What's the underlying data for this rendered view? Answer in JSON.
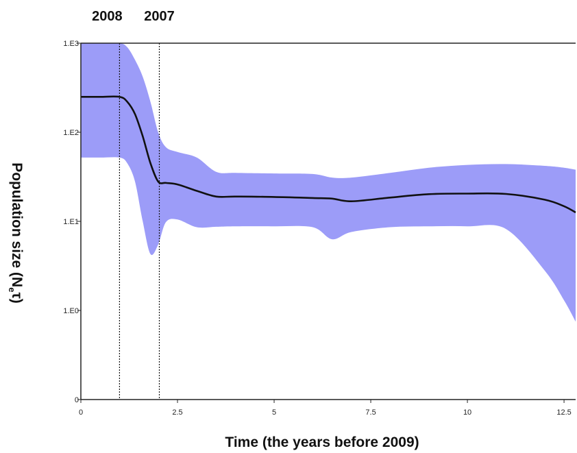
{
  "chart_data": {
    "type": "area",
    "title": "",
    "xlabel": "Time (the years before 2009)",
    "ylabel": "Population size (Neτ)",
    "ylabel_main": "Population size (N",
    "ylabel_sub": "e",
    "ylabel_tail": "τ)",
    "xlim": [
      0,
      12.8
    ],
    "x_ticks": [
      0,
      2.5,
      5,
      7.5,
      10,
      12.5
    ],
    "x_tick_labels": [
      "0",
      "2.5",
      "5",
      "7.5",
      "10",
      "12.5"
    ],
    "y_scale": "log",
    "y_tick_labels": [
      "0",
      "1.E0",
      "1.E1",
      "1.E2",
      "1.E3"
    ],
    "y_tick_exponents": [
      -1,
      0,
      1,
      2,
      3
    ],
    "grid": false,
    "legend": "none",
    "colors": {
      "band": "#9c9cf8",
      "median": "#111111",
      "marker": "#111111"
    },
    "markers": [
      {
        "x": 1.0,
        "label": "2008"
      },
      {
        "x": 2.03,
        "label": "2007"
      }
    ],
    "series": [
      {
        "type": "line",
        "x": [
          0,
          0.5,
          1.0,
          1.2,
          1.4,
          1.6,
          1.8,
          2.0,
          2.2,
          2.5,
          3.0,
          3.5,
          4.0,
          5.0,
          6.0,
          6.5,
          7.0,
          8.0,
          9.0,
          10.0,
          11.0,
          12.0,
          12.5,
          12.8
        ],
        "values": [
          250,
          250,
          250,
          220,
          160,
          90,
          45,
          28,
          27,
          26,
          22,
          19,
          19,
          18.8,
          18.3,
          18.0,
          16.8,
          18.5,
          20.2,
          20.5,
          20.3,
          17.5,
          14.8,
          12.6
        ]
      },
      {
        "type": "band",
        "x": [
          0,
          0.5,
          1.0,
          1.2,
          1.4,
          1.6,
          1.8,
          2.0,
          2.2,
          2.5,
          3.0,
          3.5,
          4.0,
          5.0,
          6.0,
          6.5,
          7.0,
          8.0,
          9.0,
          10.0,
          11.0,
          12.0,
          12.5,
          12.8
        ],
        "upper": [
          1000,
          1000,
          1000,
          900,
          650,
          420,
          220,
          100,
          68,
          60,
          52,
          36,
          35,
          34.5,
          34,
          31,
          31,
          35,
          40,
          43,
          44,
          42,
          40,
          38
        ],
        "lower": [
          52,
          52,
          52,
          45,
          28,
          10,
          4.3,
          5.5,
          9.8,
          10.5,
          8.6,
          8.7,
          8.8,
          8.8,
          8.6,
          6.3,
          7.6,
          8.6,
          8.8,
          8.8,
          8.2,
          2.8,
          1.3,
          0.75
        ]
      }
    ]
  }
}
